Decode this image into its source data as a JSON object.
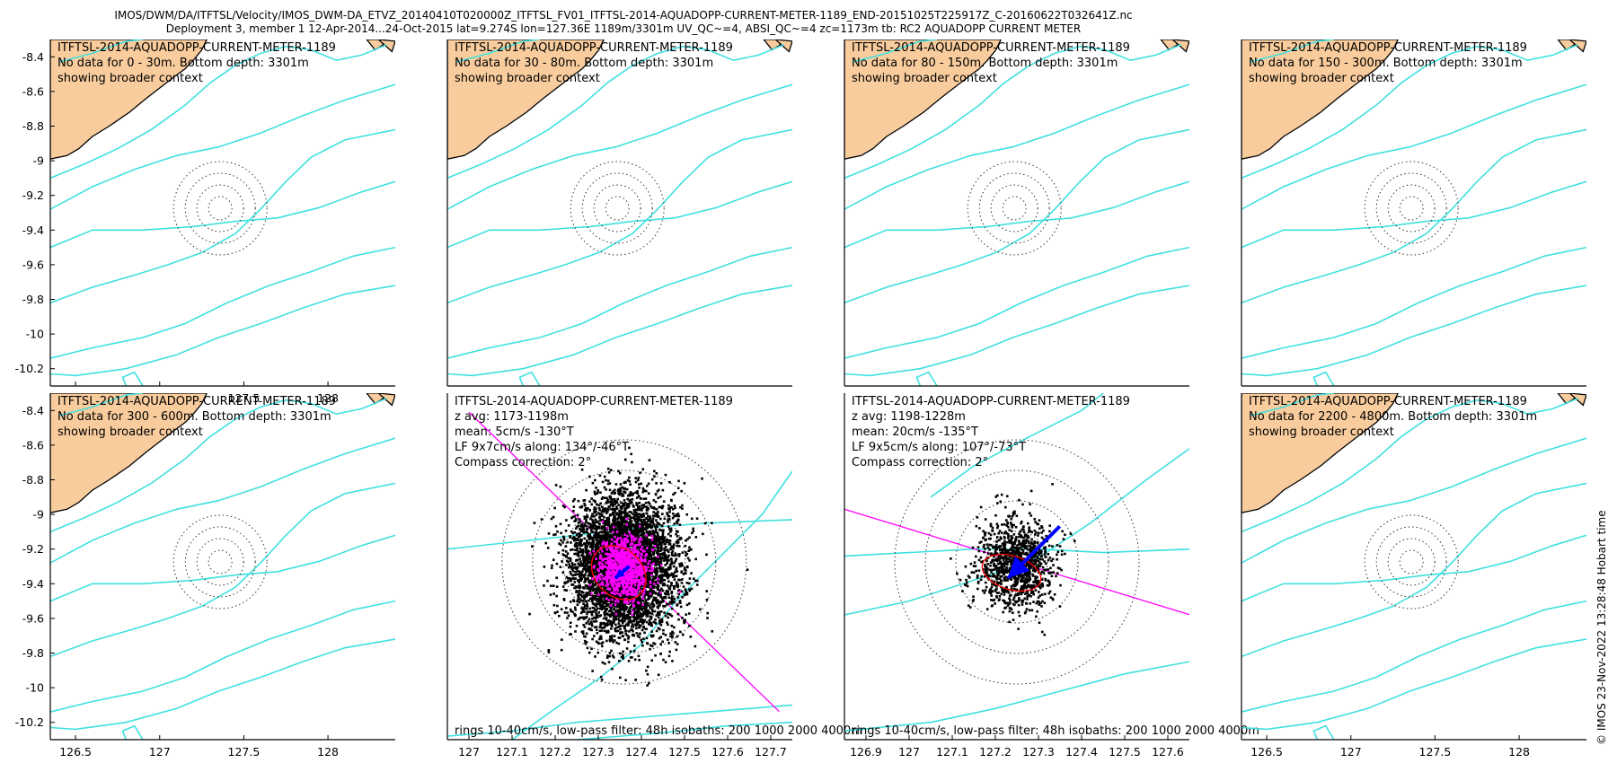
{
  "header": {
    "line1": "IMOS/DWM/DA/ITFTSL/Velocity/IMOS_DWM-DA_ETVZ_20140410T020000Z_ITFTSL_FV01_ITFTSL-2014-AQUADOPP-CURRENT-METER-1189_END-20151025T225917Z_C-20160622T032641Z.nc",
    "line2": "Deployment 3, member 1 12-Apr-2014...24-Oct-2015 lat=9.274S lon=127.36E 1189m/3301m UV_QC~=4, ABSI_QC~=4 zc=1173m tb: RC2 AQUADOPP CURRENT METER"
  },
  "side_label": "© IMOS 23-Nov-2022 13:28:48 Hobart time",
  "colors": {
    "land": "#f9cc9d",
    "isobath": "#40e0e0",
    "scatter": "#000000",
    "lowpass": "#ff00ff",
    "mean_arrow": "#0000ff",
    "ellipse": "#ff0000",
    "major_axis": "#ff00ff",
    "rings": "#333333"
  },
  "chart_data": [
    {
      "type": "map",
      "xlim": [
        126.35,
        128.4
      ],
      "ylim": [
        -10.3,
        -8.3
      ],
      "xticks": [
        126.5,
        127,
        127.5,
        128
      ],
      "yticks": [
        -8.4,
        -8.6,
        -8.8,
        -9,
        -9.2,
        -9.4,
        -9.6,
        -9.8,
        -10,
        -10.2
      ],
      "xtick_labels": [
        "126.5",
        "127",
        "127.5",
        "128"
      ],
      "ytick_labels": [
        "-8.4",
        "-8.6",
        "-8.8",
        "-9",
        "-9.2",
        "-9.4",
        "-9.6",
        "-9.8",
        "-10",
        "-10.2"
      ],
      "text": [
        "ITFTSL-2014-AQUADOPP-CURRENT-METER-1189",
        "No data for 0 - 30m. Bottom depth: 3301m",
        "showing broader context"
      ],
      "footer": "",
      "center": [
        127.36,
        -9.274
      ],
      "rings": [
        10,
        20,
        30,
        40
      ],
      "land": true
    },
    {
      "type": "map",
      "xlim": [
        126.35,
        128.4
      ],
      "ylim": [
        -10.3,
        -8.3
      ],
      "xticks": [],
      "yticks": [],
      "xtick_labels": [],
      "ytick_labels": [],
      "text": [
        "ITFTSL-2014-AQUADOPP-CURRENT-METER-1189",
        "No data for 30 - 80m. Bottom depth: 3301m",
        "showing broader context"
      ],
      "footer": "",
      "center": [
        127.36,
        -9.274
      ],
      "rings": [
        10,
        20,
        30,
        40
      ],
      "land": true
    },
    {
      "type": "map",
      "xlim": [
        126.35,
        128.4
      ],
      "ylim": [
        -10.3,
        -8.3
      ],
      "xticks": [],
      "yticks": [],
      "xtick_labels": [],
      "ytick_labels": [],
      "text": [
        "ITFTSL-2014-AQUADOPP-CURRENT-METER-1189",
        "No data for 80 - 150m. Bottom depth: 3301m",
        "showing broader context"
      ],
      "footer": "",
      "center": [
        127.36,
        -9.274
      ],
      "rings": [
        10,
        20,
        30,
        40
      ],
      "land": true
    },
    {
      "type": "map",
      "xlim": [
        126.35,
        128.4
      ],
      "ylim": [
        -10.3,
        -8.3
      ],
      "xticks": [],
      "yticks": [],
      "xtick_labels": [],
      "ytick_labels": [],
      "text": [
        "ITFTSL-2014-AQUADOPP-CURRENT-METER-1189",
        "No data for 150 - 300m. Bottom depth: 3301m",
        "showing broader context"
      ],
      "footer": "",
      "center": [
        127.36,
        -9.274
      ],
      "rings": [
        10,
        20,
        30,
        40
      ],
      "land": true
    },
    {
      "type": "map",
      "xlim": [
        126.35,
        128.4
      ],
      "ylim": [
        -10.3,
        -8.3
      ],
      "xticks": [
        126.5,
        127,
        127.5,
        128
      ],
      "yticks": [
        -8.4,
        -8.6,
        -8.8,
        -9,
        -9.2,
        -9.4,
        -9.6,
        -9.8,
        -10,
        -10.2
      ],
      "xtick_labels": [
        "126.5",
        "127",
        "127.5",
        "128"
      ],
      "ytick_labels": [
        "-8.4",
        "-8.6",
        "-8.8",
        "-9",
        "-9.2",
        "-9.4",
        "-9.6",
        "-9.8",
        "-10",
        "-10.2"
      ],
      "text": [
        "ITFTSL-2014-AQUADOPP-CURRENT-METER-1189",
        "No data for 300 - 600m. Bottom depth: 3301m",
        "showing broader context"
      ],
      "footer": "",
      "center": [
        127.36,
        -9.274
      ],
      "rings": [
        10,
        20,
        30,
        40
      ],
      "land": true
    },
    {
      "type": "scatter",
      "xlim": [
        126.95,
        127.75
      ],
      "ylim": [
        -10.3,
        -8.3
      ],
      "xticks": [
        127,
        127.1,
        127.2,
        127.3,
        127.4,
        127.5,
        127.6,
        127.7
      ],
      "yticks": [],
      "xtick_labels": [
        "127",
        "127.1",
        "127.2",
        "127.3",
        "127.4",
        "127.5",
        "127.6",
        "127.7"
      ],
      "ytick_labels": [],
      "text": [
        "ITFTSL-2014-AQUADOPP-CURRENT-METER-1189",
        "z avg: 1173-1198m",
        "mean: 5cm/s -130°T",
        "LF 9x7cm/s along: 134°/-46°T",
        "Compass correction: 2°"
      ],
      "footer": "rings 10-40cm/s, low-pass filter: 48h isobaths: 200 1000 2000 4000m",
      "center": [
        127.36,
        -9.274
      ],
      "rings": [
        10,
        20,
        30,
        40
      ],
      "land": false,
      "scatter": {
        "n": 5200,
        "spread_x": 0.062,
        "spread_y": 0.2,
        "seed": 7
      },
      "lowpass": {
        "n": 900,
        "spread_x": 0.028,
        "spread_y": 0.09,
        "seed": 11
      },
      "mean_speed_cms": 5,
      "mean_dir_degT": -130,
      "ellipse_cms": [
        9,
        7
      ],
      "major_axis_degT": 134
    },
    {
      "type": "scatter",
      "xlim": [
        126.85,
        127.65
      ],
      "ylim": [
        -10.3,
        -8.3
      ],
      "xticks": [
        126.9,
        127,
        127.1,
        127.2,
        127.3,
        127.4,
        127.5,
        127.6
      ],
      "yticks": [],
      "xtick_labels": [
        "126.9",
        "127",
        "127.1",
        "127.2",
        "127.3",
        "127.4",
        "127.5",
        "127.6"
      ],
      "ytick_labels": [],
      "text": [
        "ITFTSL-2014-AQUADOPP-CURRENT-METER-1189",
        "z avg: 1198-1228m",
        "mean: 20cm/s -135°T",
        "LF 9x5cm/s along: 107°/-73°T",
        "Compass correction: 2°"
      ],
      "footer": "rings 10-40cm/s, low-pass filter: 48h isobaths: 200 1000 2000 4000m",
      "center": [
        127.25,
        -9.274
      ],
      "rings": [
        10,
        20,
        30,
        40
      ],
      "land": false,
      "scatter": {
        "n": 1100,
        "spread_x": 0.045,
        "spread_y": 0.13,
        "seed": 21
      },
      "lowpass": {
        "n": 0,
        "spread_x": 0.02,
        "spread_y": 0.05,
        "seed": 3
      },
      "mean_speed_cms": 20,
      "mean_dir_degT": -135,
      "ellipse_cms": [
        9,
        5
      ],
      "major_axis_degT": 107
    },
    {
      "type": "map",
      "xlim": [
        126.35,
        128.4
      ],
      "ylim": [
        -10.3,
        -8.3
      ],
      "xticks": [
        126.5,
        127,
        127.5,
        128
      ],
      "yticks": [],
      "xtick_labels": [
        "126.5",
        "127",
        "127.5",
        "128"
      ],
      "ytick_labels": [],
      "text": [
        "ITFTSL-2014-AQUADOPP-CURRENT-METER-1189",
        "No data for 2200 - 4800m. Bottom depth: 3301m",
        "showing broader context"
      ],
      "footer": "",
      "center": [
        127.36,
        -9.274
      ],
      "rings": [
        10,
        20,
        30,
        40
      ],
      "land": true
    }
  ]
}
